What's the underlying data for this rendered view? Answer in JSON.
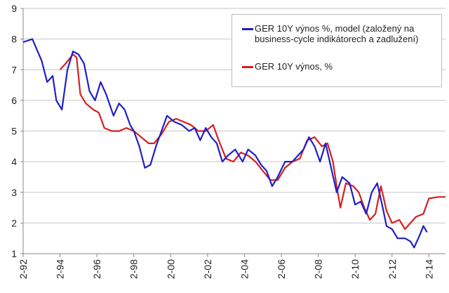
{
  "chart_data": {
    "type": "line",
    "title": "",
    "xlabel": "",
    "ylabel": "",
    "ylim": [
      1,
      9
    ],
    "xlim": [
      1992,
      2014.9
    ],
    "yticks": [
      "1",
      "2",
      "3",
      "4",
      "5",
      "6",
      "7",
      "8",
      "9"
    ],
    "xticks": [
      "2-92",
      "2-94",
      "2-96",
      "2-98",
      "2-00",
      "2-02",
      "2-04",
      "2-06",
      "2-08",
      "2-10",
      "2-12",
      "2-14"
    ],
    "grid": true,
    "legend_position": "top-right",
    "series": [
      {
        "name": "GER 10Y výnos %, model (založený na business-cycle indikátorech a zadlužení)",
        "color": "#1f1fc8",
        "x": [
          1992.0,
          1992.5,
          1993.0,
          1993.3,
          1993.6,
          1993.8,
          1994.1,
          1994.4,
          1994.7,
          1995.0,
          1995.3,
          1995.6,
          1995.9,
          1996.2,
          1996.5,
          1996.9,
          1997.2,
          1997.5,
          1997.8,
          1998.0,
          1998.3,
          1998.6,
          1998.9,
          1999.2,
          1999.5,
          1999.8,
          2000.2,
          2000.6,
          2001.0,
          2001.3,
          2001.6,
          2001.9,
          2002.2,
          2002.5,
          2002.8,
          2003.1,
          2003.5,
          2003.9,
          2004.2,
          2004.6,
          2004.9,
          2005.2,
          2005.5,
          2005.8,
          2006.2,
          2006.6,
          2006.9,
          2007.2,
          2007.5,
          2007.8,
          2008.1,
          2008.4,
          2008.7,
          2009.0,
          2009.3,
          2009.7,
          2010.0,
          2010.3,
          2010.6,
          2010.9,
          2011.2,
          2011.5,
          2011.7,
          2012.0,
          2012.3,
          2012.7,
          2013.0,
          2013.2,
          2013.5,
          2013.7,
          2013.9
        ],
        "y": [
          7.9,
          8.0,
          7.3,
          6.6,
          6.8,
          6.0,
          5.7,
          7.0,
          7.6,
          7.5,
          7.2,
          6.3,
          6.0,
          6.6,
          6.2,
          5.5,
          5.9,
          5.7,
          5.2,
          5.0,
          4.5,
          3.8,
          3.9,
          4.5,
          5.0,
          5.5,
          5.3,
          5.2,
          5.0,
          5.1,
          4.7,
          5.1,
          4.8,
          4.6,
          4.0,
          4.2,
          4.4,
          4.0,
          4.4,
          4.2,
          3.9,
          3.7,
          3.2,
          3.5,
          4.0,
          4.0,
          4.2,
          4.4,
          4.8,
          4.5,
          4.0,
          4.6,
          3.8,
          3.0,
          3.5,
          3.3,
          2.6,
          2.7,
          2.3,
          3.0,
          3.3,
          2.5,
          1.9,
          1.8,
          1.5,
          1.5,
          1.4,
          1.2,
          1.6,
          1.9,
          1.7
        ]
      },
      {
        "name": "GER 10Y výnos, %",
        "color": "#d42020",
        "x": [
          1994.0,
          1994.3,
          1994.7,
          1994.9,
          1995.1,
          1995.4,
          1995.8,
          1996.1,
          1996.4,
          1996.8,
          1997.2,
          1997.6,
          1998.0,
          1998.4,
          1998.8,
          1999.1,
          1999.5,
          1999.9,
          2000.3,
          2000.7,
          2001.1,
          2001.5,
          2001.9,
          2002.3,
          2002.6,
          2003.0,
          2003.4,
          2003.8,
          2004.2,
          2004.6,
          2005.0,
          2005.4,
          2005.8,
          2006.2,
          2006.6,
          2007.0,
          2007.4,
          2007.8,
          2008.2,
          2008.5,
          2008.8,
          2009.0,
          2009.2,
          2009.5,
          2009.9,
          2010.2,
          2010.5,
          2010.8,
          2011.1,
          2011.4,
          2011.7,
          2012.0,
          2012.4,
          2012.7,
          2013.0,
          2013.3,
          2013.7,
          2014.0,
          2014.5,
          2014.9
        ],
        "y": [
          7.0,
          7.2,
          7.5,
          7.4,
          6.2,
          5.9,
          5.7,
          5.6,
          5.1,
          5.0,
          5.0,
          5.1,
          5.0,
          4.8,
          4.6,
          4.6,
          4.9,
          5.3,
          5.4,
          5.3,
          5.2,
          5.0,
          5.0,
          5.2,
          4.7,
          4.1,
          4.0,
          4.3,
          4.2,
          4.0,
          3.7,
          3.4,
          3.4,
          3.8,
          4.0,
          4.1,
          4.7,
          4.8,
          4.5,
          4.6,
          4.0,
          3.2,
          2.5,
          3.3,
          3.2,
          3.0,
          2.5,
          2.1,
          2.3,
          3.2,
          2.4,
          2.0,
          2.1,
          1.8,
          2.0,
          2.2,
          2.3,
          2.8,
          2.85,
          2.85
        ]
      }
    ]
  }
}
